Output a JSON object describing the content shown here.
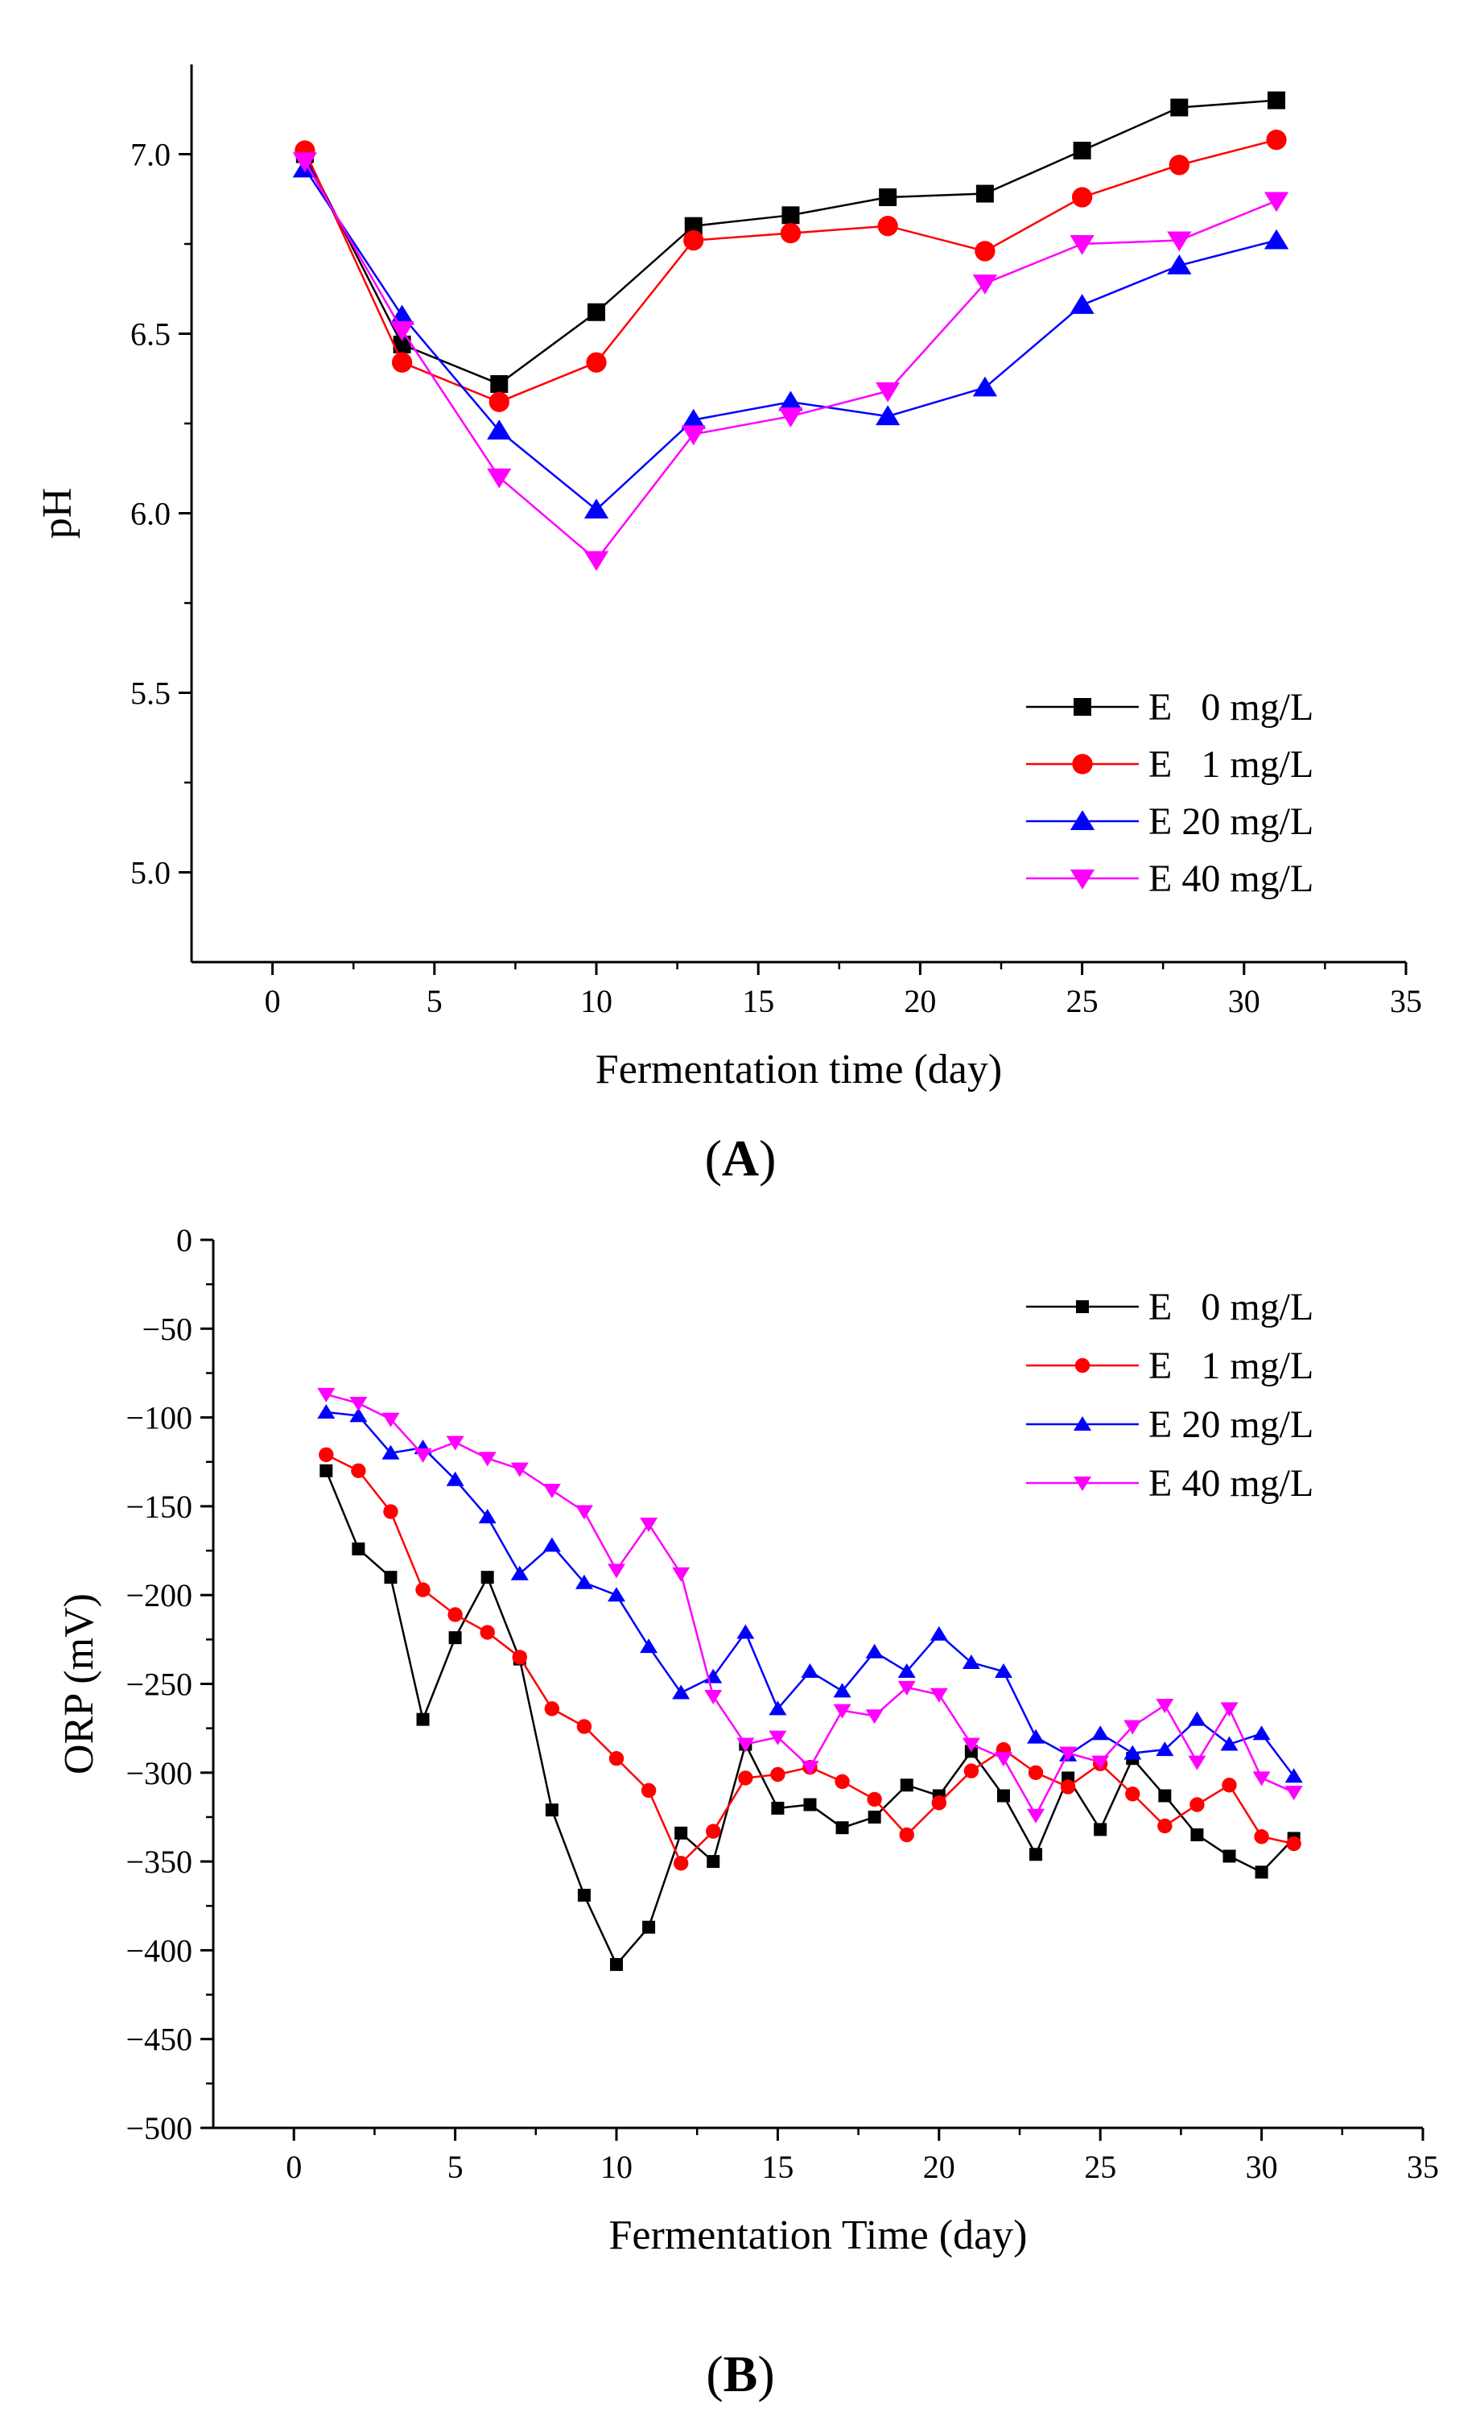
{
  "chart_data": [
    {
      "type": "line",
      "panel_label": "A",
      "xlabel": "Fermentation time (day)",
      "ylabel": "pH",
      "xlim": [
        -2.5,
        35
      ],
      "ylim": [
        4.75,
        7.25
      ],
      "xticks": [
        0,
        5,
        10,
        15,
        20,
        25,
        30,
        35
      ],
      "yticks": [
        5.0,
        5.5,
        6.0,
        6.5,
        7.0
      ],
      "ytick_labels": [
        "5.0",
        "5.5",
        "6.0",
        "6.5",
        "7.0"
      ],
      "grid": false,
      "legend_position": "bottom-right",
      "x": [
        1,
        4,
        7,
        10,
        13,
        16,
        19,
        22,
        25,
        28,
        31
      ],
      "series": [
        {
          "name": "E   0 mg/L",
          "color": "#000000",
          "marker": "square",
          "values": [
            7.0,
            6.47,
            6.36,
            6.56,
            6.8,
            6.83,
            6.88,
            6.89,
            7.01,
            7.13,
            7.15
          ]
        },
        {
          "name": "E   1 mg/L",
          "color": "#ff0000",
          "marker": "circle",
          "values": [
            7.01,
            6.42,
            6.31,
            6.42,
            6.76,
            6.78,
            6.8,
            6.73,
            6.88,
            6.97,
            7.04
          ]
        },
        {
          "name": "E 20 mg/L",
          "color": "#0000ff",
          "marker": "triangle-up",
          "values": [
            6.96,
            6.55,
            6.23,
            6.01,
            6.26,
            6.31,
            6.27,
            6.35,
            6.58,
            6.69,
            6.76
          ]
        },
        {
          "name": "E 40 mg/L",
          "color": "#ff00ff",
          "marker": "triangle-down",
          "values": [
            6.98,
            6.51,
            6.1,
            5.87,
            6.22,
            6.27,
            6.34,
            6.64,
            6.75,
            6.76,
            6.87
          ]
        }
      ]
    },
    {
      "type": "line",
      "panel_label": "B",
      "xlabel": "Fermentation Time (day)",
      "ylabel": "ORP (mV)",
      "xlim": [
        -2.5,
        35
      ],
      "ylim": [
        -500,
        0
      ],
      "xticks": [
        0,
        5,
        10,
        15,
        20,
        25,
        30,
        35
      ],
      "yticks": [
        -500,
        -450,
        -400,
        -350,
        -300,
        -250,
        -200,
        -150,
        -100,
        -50,
        0
      ],
      "ytick_labels": [
        "−500",
        "−450",
        "−400",
        "−350",
        "−300",
        "−250",
        "−200",
        "−150",
        "−100",
        "−50",
        "0"
      ],
      "grid": false,
      "legend_position": "top-right",
      "x": [
        1,
        2,
        3,
        4,
        5,
        6,
        7,
        8,
        9,
        10,
        11,
        12,
        13,
        14,
        15,
        16,
        17,
        18,
        19,
        20,
        21,
        22,
        23,
        24,
        25,
        26,
        27,
        28,
        29,
        30,
        31
      ],
      "series": [
        {
          "name": "E   0 mg/L",
          "color": "#000000",
          "marker": "square",
          "values": [
            -130,
            -174,
            -190,
            -270,
            -224,
            -190,
            -236,
            -321,
            -369,
            -408,
            -387,
            -334,
            -350,
            -284,
            -320,
            -318,
            -331,
            -325,
            -307,
            -313,
            -288,
            -313,
            -346,
            -303,
            -332,
            -292,
            -313,
            -335,
            -347,
            -356,
            -337
          ]
        },
        {
          "name": "E   1 mg/L",
          "color": "#ff0000",
          "marker": "circle",
          "values": [
            -121,
            -130,
            -153,
            -197,
            -211,
            -221,
            -235,
            -264,
            -274,
            -292,
            -310,
            -351,
            -333,
            -303,
            -301,
            -297,
            -305,
            -315,
            -335,
            -317,
            -299,
            -287,
            -300,
            -308,
            -295,
            -312,
            -330,
            -318,
            -307,
            -336,
            -340
          ]
        },
        {
          "name": "E 20 mg/L",
          "color": "#0000ff",
          "marker": "triangle-up",
          "values": [
            -97,
            -99,
            -120,
            -117,
            -135,
            -156,
            -188,
            -172,
            -193,
            -200,
            -229,
            -255,
            -246,
            -221,
            -264,
            -243,
            -254,
            -232,
            -243,
            -222,
            -238,
            -243,
            -280,
            -290,
            -278,
            -289,
            -287,
            -270,
            -284,
            -278,
            -302
          ]
        },
        {
          "name": "E 40 mg/L",
          "color": "#ff00ff",
          "marker": "triangle-down",
          "values": [
            -87,
            -92,
            -101,
            -121,
            -114,
            -123,
            -129,
            -141,
            -153,
            -186,
            -160,
            -188,
            -257,
            -284,
            -280,
            -297,
            -265,
            -268,
            -252,
            -256,
            -284,
            -292,
            -324,
            -289,
            -294,
            -274,
            -262,
            -294,
            -264,
            -303,
            -311
          ]
        }
      ]
    }
  ]
}
